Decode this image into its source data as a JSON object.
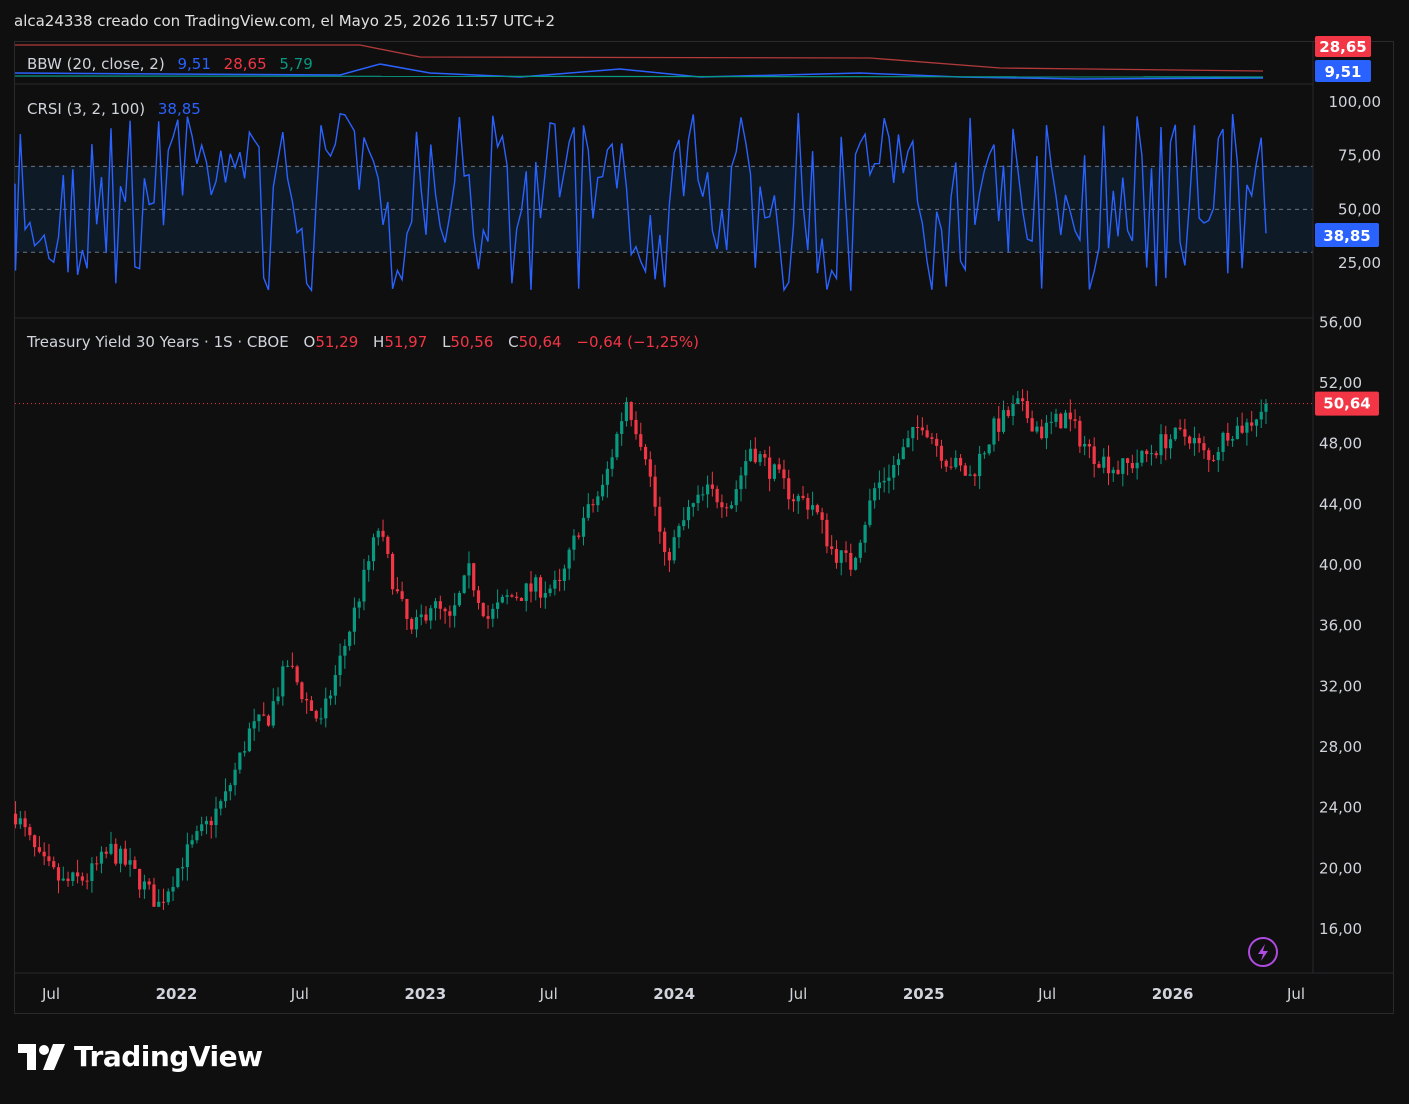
{
  "header": {
    "text": "alca24338 creado con TradingView.com, el Mayo 25, 2026 11:57 UTC+2"
  },
  "brand": {
    "name": "TradingView"
  },
  "bbw": {
    "label": "BBW (20, close, 2)",
    "value1": "9,51",
    "value2": "28,65",
    "value3": "5,79",
    "badge_top": "28,65",
    "badge_bottom": "9,51",
    "color1": "#2962ff",
    "color2": "#f23645",
    "color3": "#089981"
  },
  "crsi": {
    "label": "CRSI (3, 2, 100)",
    "value": "38,85",
    "badge": "38,85",
    "ticks": [
      "100,00",
      "75,00",
      "50,00",
      "25,00"
    ],
    "line_color": "#2962ff",
    "upper_band": 70,
    "mid_band": 50,
    "lower_band": 30
  },
  "main": {
    "symbol": "Treasury Yield 30 Years · 1S · CBOE",
    "o_label": "O",
    "o_value": "51,29",
    "h_label": "H",
    "h_value": "51,97",
    "l_label": "L",
    "l_value": "50,56",
    "c_label": "C",
    "c_value": "50,64",
    "change": "−0,64 (−1,25%)",
    "last_badge": "50,64",
    "up_color": "#089981",
    "down_color": "#f23645"
  },
  "chart_data": {
    "type": "candlestick",
    "price_axis_ticks": [
      "56,00",
      "52,00",
      "48,00",
      "44,00",
      "40,00",
      "36,00",
      "32,00",
      "28,00",
      "24,00",
      "20,00",
      "16,00"
    ],
    "ylim": [
      13.5,
      56.0
    ],
    "x_axis_ticks": [
      "Jul",
      "2022",
      "Jul",
      "2023",
      "Jul",
      "2024",
      "Jul",
      "2025",
      "Jul",
      "2026",
      "Jul"
    ],
    "last_price": 50.64,
    "close_path": [
      {
        "date": "2021-05-10",
        "value": 23.6
      },
      {
        "date": "2021-06-14",
        "value": 20.5
      },
      {
        "date": "2021-07-19",
        "value": 19.0
      },
      {
        "date": "2021-08-23",
        "value": 19.4
      },
      {
        "date": "2021-09-27",
        "value": 21.2
      },
      {
        "date": "2021-10-25",
        "value": 20.0
      },
      {
        "date": "2021-12-06",
        "value": 17.6
      },
      {
        "date": "2022-01-10",
        "value": 20.6
      },
      {
        "date": "2022-02-14",
        "value": 22.8
      },
      {
        "date": "2022-03-14",
        "value": 24.7
      },
      {
        "date": "2022-04-18",
        "value": 29.0
      },
      {
        "date": "2022-05-16",
        "value": 30.0
      },
      {
        "date": "2022-06-13",
        "value": 33.5
      },
      {
        "date": "2022-07-11",
        "value": 31.0
      },
      {
        "date": "2022-08-01",
        "value": 29.5
      },
      {
        "date": "2022-09-12",
        "value": 35.8
      },
      {
        "date": "2022-10-24",
        "value": 42.4
      },
      {
        "date": "2022-11-21",
        "value": 38.0
      },
      {
        "date": "2022-12-12",
        "value": 35.4
      },
      {
        "date": "2023-01-09",
        "value": 37.5
      },
      {
        "date": "2023-02-06",
        "value": 36.2
      },
      {
        "date": "2023-03-06",
        "value": 39.5
      },
      {
        "date": "2023-04-03",
        "value": 36.5
      },
      {
        "date": "2023-05-01",
        "value": 37.8
      },
      {
        "date": "2023-06-12",
        "value": 38.5
      },
      {
        "date": "2023-07-17",
        "value": 38.5
      },
      {
        "date": "2023-08-14",
        "value": 42.5
      },
      {
        "date": "2023-09-18",
        "value": 45.0
      },
      {
        "date": "2023-10-23",
        "value": 50.9
      },
      {
        "date": "2023-11-20",
        "value": 47.5
      },
      {
        "date": "2023-12-18",
        "value": 40.2
      },
      {
        "date": "2024-01-22",
        "value": 43.5
      },
      {
        "date": "2024-02-19",
        "value": 44.8
      },
      {
        "date": "2024-03-25",
        "value": 44.2
      },
      {
        "date": "2024-04-22",
        "value": 47.8
      },
      {
        "date": "2024-05-27",
        "value": 46.0
      },
      {
        "date": "2024-06-24",
        "value": 44.5
      },
      {
        "date": "2024-07-22",
        "value": 44.0
      },
      {
        "date": "2024-08-19",
        "value": 41.0
      },
      {
        "date": "2024-09-16",
        "value": 40.0
      },
      {
        "date": "2024-10-21",
        "value": 45.0
      },
      {
        "date": "2024-11-18",
        "value": 46.5
      },
      {
        "date": "2024-12-30",
        "value": 49.5
      },
      {
        "date": "2025-02-03",
        "value": 47.0
      },
      {
        "date": "2025-03-10",
        "value": 45.8
      },
      {
        "date": "2025-04-14",
        "value": 49.0
      },
      {
        "date": "2025-05-19",
        "value": 50.5
      },
      {
        "date": "2025-06-23",
        "value": 48.8
      },
      {
        "date": "2025-07-28",
        "value": 49.8
      },
      {
        "date": "2025-09-01",
        "value": 47.5
      },
      {
        "date": "2025-10-13",
        "value": 46.3
      },
      {
        "date": "2025-11-17",
        "value": 47.0
      },
      {
        "date": "2025-12-22",
        "value": 48.3
      },
      {
        "date": "2026-01-26",
        "value": 48.6
      },
      {
        "date": "2026-02-23",
        "value": 46.8
      },
      {
        "date": "2026-03-23",
        "value": 48.9
      },
      {
        "date": "2026-04-20",
        "value": 49.2
      },
      {
        "date": "2026-05-18",
        "value": 50.64
      }
    ]
  }
}
